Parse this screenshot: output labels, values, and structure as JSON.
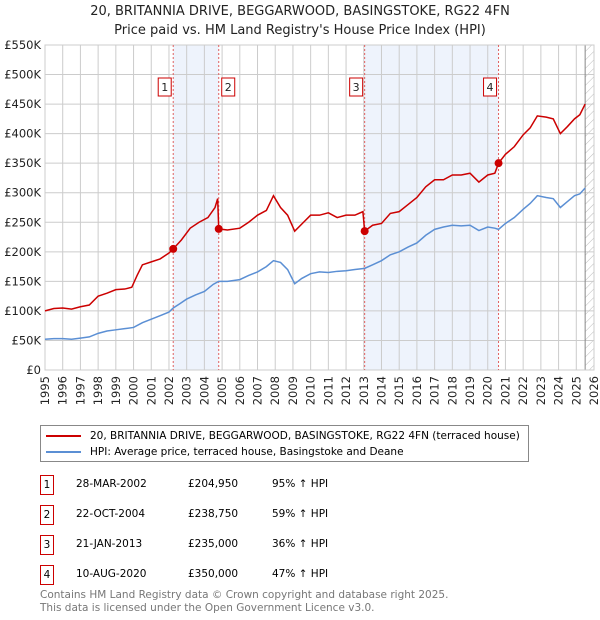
{
  "title": "20, BRITANNIA DRIVE, BEGGARWOOD, BASINGSTOKE, RG22 4FN",
  "subtitle": "Price paid vs. HM Land Registry's House Price Index (HPI)",
  "chart_data": {
    "type": "line",
    "ylim": [
      0,
      550000
    ],
    "xlim": [
      1995,
      2026
    ],
    "yticks": [
      {
        "v": 0,
        "l": "£0"
      },
      {
        "v": 50000,
        "l": "£50K"
      },
      {
        "v": 100000,
        "l": "£100K"
      },
      {
        "v": 150000,
        "l": "£150K"
      },
      {
        "v": 200000,
        "l": "£200K"
      },
      {
        "v": 250000,
        "l": "£250K"
      },
      {
        "v": 300000,
        "l": "£300K"
      },
      {
        "v": 350000,
        "l": "£350K"
      },
      {
        "v": 400000,
        "l": "£400K"
      },
      {
        "v": 450000,
        "l": "£450K"
      },
      {
        "v": 500000,
        "l": "£500K"
      },
      {
        "v": 550000,
        "l": "£550K"
      }
    ],
    "xticks": [
      "1995",
      "1996",
      "1997",
      "1998",
      "1999",
      "2000",
      "2001",
      "2002",
      "2003",
      "2004",
      "2005",
      "2006",
      "2007",
      "2008",
      "2009",
      "2010",
      "2011",
      "2012",
      "2013",
      "2014",
      "2015",
      "2016",
      "2017",
      "2018",
      "2019",
      "2020",
      "2021",
      "2022",
      "2023",
      "2024",
      "2025",
      "2026"
    ],
    "grid": true,
    "forecast_from": 2025.5,
    "shaded": [
      [
        2002.24,
        2004.81
      ],
      [
        2013.05,
        2020.61
      ]
    ],
    "series": [
      {
        "name": "20, BRITANNIA DRIVE, BEGGARWOOD, BASINGSTOKE, RG22 4FN (terraced house)",
        "color": "#cc0000",
        "points": [
          [
            1995,
            100000
          ],
          [
            1995.5,
            104000
          ],
          [
            1996,
            105000
          ],
          [
            1996.5,
            103000
          ],
          [
            1997,
            107000
          ],
          [
            1997.5,
            110000
          ],
          [
            1998,
            125000
          ],
          [
            1998.5,
            130000
          ],
          [
            1999,
            136000
          ],
          [
            1999.5,
            137000
          ],
          [
            1999.9,
            140000
          ],
          [
            2000.2,
            160000
          ],
          [
            2000.5,
            178000
          ],
          [
            2001,
            183000
          ],
          [
            2001.5,
            188000
          ],
          [
            2002,
            198000
          ],
          [
            2002.24,
            204950
          ],
          [
            2002.7,
            220000
          ],
          [
            2003.2,
            240000
          ],
          [
            2003.7,
            250000
          ],
          [
            2004.2,
            258000
          ],
          [
            2004.6,
            275000
          ],
          [
            2004.75,
            290000
          ],
          [
            2004.81,
            238750
          ],
          [
            2005.3,
            237000
          ],
          [
            2006,
            240000
          ],
          [
            2006.5,
            250000
          ],
          [
            2007,
            262000
          ],
          [
            2007.5,
            270000
          ],
          [
            2007.9,
            295000
          ],
          [
            2008.3,
            275000
          ],
          [
            2008.7,
            262000
          ],
          [
            2009.1,
            235000
          ],
          [
            2009.6,
            250000
          ],
          [
            2010,
            262000
          ],
          [
            2010.5,
            262000
          ],
          [
            2011,
            266000
          ],
          [
            2011.5,
            258000
          ],
          [
            2012,
            262000
          ],
          [
            2012.5,
            262000
          ],
          [
            2012.95,
            268000
          ],
          [
            2013.05,
            235000
          ],
          [
            2013.5,
            245000
          ],
          [
            2014,
            248000
          ],
          [
            2014.5,
            265000
          ],
          [
            2015,
            268000
          ],
          [
            2015.5,
            280000
          ],
          [
            2016,
            292000
          ],
          [
            2016.5,
            310000
          ],
          [
            2017,
            322000
          ],
          [
            2017.5,
            322000
          ],
          [
            2018,
            330000
          ],
          [
            2018.5,
            330000
          ],
          [
            2019,
            333000
          ],
          [
            2019.5,
            318000
          ],
          [
            2020,
            330000
          ],
          [
            2020.4,
            333000
          ],
          [
            2020.61,
            350000
          ],
          [
            2021,
            365000
          ],
          [
            2021.5,
            378000
          ],
          [
            2022,
            398000
          ],
          [
            2022.4,
            410000
          ],
          [
            2022.8,
            430000
          ],
          [
            2023.3,
            428000
          ],
          [
            2023.7,
            425000
          ],
          [
            2024.1,
            400000
          ],
          [
            2024.5,
            412000
          ],
          [
            2024.9,
            425000
          ],
          [
            2025.2,
            432000
          ],
          [
            2025.5,
            450000
          ]
        ]
      },
      {
        "name": "HPI: Average price, terraced house, Basingstoke and Deane",
        "color": "#5b8fd4",
        "points": [
          [
            1995,
            52000
          ],
          [
            1995.5,
            53000
          ],
          [
            1996,
            53000
          ],
          [
            1996.5,
            52000
          ],
          [
            1997,
            54000
          ],
          [
            1997.5,
            56000
          ],
          [
            1998,
            62000
          ],
          [
            1998.5,
            66000
          ],
          [
            1999,
            68000
          ],
          [
            1999.5,
            70000
          ],
          [
            2000,
            72000
          ],
          [
            2000.5,
            80000
          ],
          [
            2001,
            86000
          ],
          [
            2001.5,
            92000
          ],
          [
            2002,
            98000
          ],
          [
            2002.24,
            105000
          ],
          [
            2002.6,
            112000
          ],
          [
            2003,
            120000
          ],
          [
            2003.5,
            127000
          ],
          [
            2004,
            133000
          ],
          [
            2004.5,
            145000
          ],
          [
            2004.81,
            150000
          ],
          [
            2005.3,
            150000
          ],
          [
            2006,
            153000
          ],
          [
            2006.5,
            160000
          ],
          [
            2007,
            166000
          ],
          [
            2007.5,
            175000
          ],
          [
            2007.9,
            185000
          ],
          [
            2008.3,
            182000
          ],
          [
            2008.7,
            170000
          ],
          [
            2009.1,
            146000
          ],
          [
            2009.5,
            155000
          ],
          [
            2010,
            163000
          ],
          [
            2010.5,
            166000
          ],
          [
            2011,
            165000
          ],
          [
            2011.5,
            167000
          ],
          [
            2012,
            168000
          ],
          [
            2012.5,
            170000
          ],
          [
            2013.05,
            172000
          ],
          [
            2013.5,
            178000
          ],
          [
            2014,
            185000
          ],
          [
            2014.5,
            195000
          ],
          [
            2015,
            200000
          ],
          [
            2015.5,
            208000
          ],
          [
            2016,
            215000
          ],
          [
            2016.5,
            228000
          ],
          [
            2017,
            238000
          ],
          [
            2017.5,
            242000
          ],
          [
            2018,
            245000
          ],
          [
            2018.5,
            244000
          ],
          [
            2019,
            245000
          ],
          [
            2019.5,
            236000
          ],
          [
            2020,
            242000
          ],
          [
            2020.4,
            240000
          ],
          [
            2020.61,
            238000
          ],
          [
            2021,
            248000
          ],
          [
            2021.5,
            258000
          ],
          [
            2022,
            272000
          ],
          [
            2022.4,
            282000
          ],
          [
            2022.8,
            295000
          ],
          [
            2023.3,
            292000
          ],
          [
            2023.7,
            290000
          ],
          [
            2024.1,
            275000
          ],
          [
            2024.5,
            285000
          ],
          [
            2024.9,
            295000
          ],
          [
            2025.2,
            298000
          ],
          [
            2025.5,
            308000
          ]
        ]
      }
    ],
    "sales": [
      {
        "label": "1",
        "x": 2002.24,
        "y": 204950
      },
      {
        "label": "2",
        "x": 2004.81,
        "y": 238750
      },
      {
        "label": "3",
        "x": 2013.05,
        "y": 235000
      },
      {
        "label": "4",
        "x": 2020.61,
        "y": 350000
      }
    ]
  },
  "legend": {
    "red": "20, BRITANNIA DRIVE, BEGGARWOOD, BASINGSTOKE, RG22 4FN (terraced house)",
    "blue": "HPI: Average price, terraced house, Basingstoke and Deane"
  },
  "transactions": [
    {
      "n": "1",
      "date": "28-MAR-2002",
      "price": "£204,950",
      "hpi": "95% ↑ HPI"
    },
    {
      "n": "2",
      "date": "22-OCT-2004",
      "price": "£238,750",
      "hpi": "59% ↑ HPI"
    },
    {
      "n": "3",
      "date": "21-JAN-2013",
      "price": "£235,000",
      "hpi": "36% ↑ HPI"
    },
    {
      "n": "4",
      "date": "10-AUG-2020",
      "price": "£350,000",
      "hpi": "47% ↑ HPI"
    }
  ],
  "footer": [
    "Contains HM Land Registry data © Crown copyright and database right 2025.",
    "This data is licensed under the Open Government Licence v3.0."
  ]
}
